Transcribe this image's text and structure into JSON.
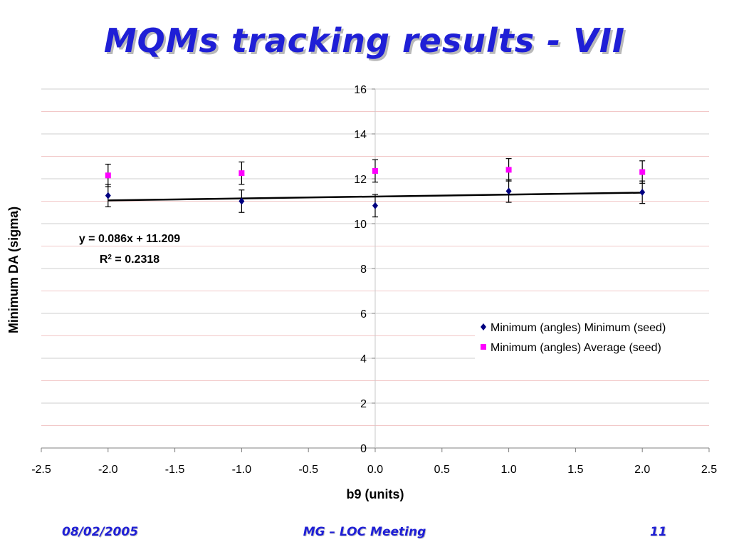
{
  "slide": {
    "title": "MQMs tracking results - VII",
    "footer_date": "08/02/2005",
    "footer_center": "MG – LOC Meeting",
    "footer_page": "11"
  },
  "colors": {
    "title": "#1f1fd6",
    "series_min": "#000080",
    "series_avg": "#ff00ff",
    "trendline": "#000000",
    "grid_major": "#cfcfcf",
    "grid_minor": "#f2c8c8"
  },
  "chart_data": {
    "type": "scatter",
    "xlabel": "b9 (units)",
    "ylabel": "Minimum DA (sigma)",
    "xlim": [
      -2.5,
      2.5
    ],
    "ylim": [
      0,
      16
    ],
    "xticks": [
      "-2.5",
      "-2.0",
      "-1.5",
      "-1.0",
      "-0.5",
      "0.0",
      "0.5",
      "1.0",
      "1.5",
      "2.0",
      "2.5"
    ],
    "yticks": [
      "0",
      "2",
      "4",
      "6",
      "8",
      "10",
      "12",
      "14",
      "16"
    ],
    "grid": true,
    "legend_position": "right",
    "series": [
      {
        "name": "Minimum (angles) Minimum (seed)",
        "marker": "diamond",
        "color": "#000080",
        "points": [
          {
            "x": -2,
            "y": 11.25,
            "err": 0.5
          },
          {
            "x": -1,
            "y": 11.0,
            "err": 0.5
          },
          {
            "x": 0,
            "y": 10.8,
            "err": 0.5
          },
          {
            "x": 1,
            "y": 11.45,
            "err": 0.5
          },
          {
            "x": 2,
            "y": 11.4,
            "err": 0.5
          }
        ]
      },
      {
        "name": "Minimum (angles) Average (seed)",
        "marker": "square",
        "color": "#ff00ff",
        "points": [
          {
            "x": -2,
            "y": 12.15,
            "err": 0.5
          },
          {
            "x": -1,
            "y": 12.25,
            "err": 0.5
          },
          {
            "x": 0,
            "y": 12.35,
            "err": 0.5
          },
          {
            "x": 1,
            "y": 12.4,
            "err": 0.5
          },
          {
            "x": 2,
            "y": 12.3,
            "err": 0.5
          }
        ]
      }
    ],
    "trendline": {
      "series": "Minimum (angles) Minimum (seed)",
      "slope": 0.086,
      "intercept": 11.209,
      "x_range": [
        -2,
        2
      ],
      "equation_label": "y = 0.086x + 11.209",
      "r2_prefix": "R",
      "r2_sup": "2",
      "r2_value": " = 0.2318"
    }
  }
}
